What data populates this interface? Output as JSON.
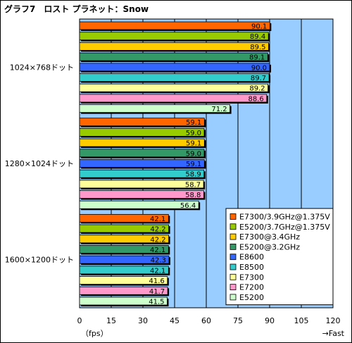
{
  "title": "グラフ7　ロスト プラネット：Snow",
  "chart_data": {
    "type": "bar",
    "orientation": "horizontal",
    "title": "グラフ7　ロスト プラネット：Snow",
    "xlabel_left": "（fps）",
    "xlabel_right": "→Fast",
    "xlim": [
      0,
      120
    ],
    "xticks": [
      0,
      15,
      30,
      45,
      60,
      75,
      90,
      105,
      120
    ],
    "grid": true,
    "background": "#99CCFF",
    "legend_position": "bottom-right",
    "categories": [
      "1024×768ドット",
      "1280×1024ドット",
      "1600×1200ドット"
    ],
    "series": [
      {
        "name": "E7300/3.9GHz@1.375V",
        "color": "#FF6600",
        "values": [
          90.1,
          59.1,
          42.1
        ]
      },
      {
        "name": "E5200/3.7GHz@1.375V",
        "color": "#99CC00",
        "values": [
          89.4,
          59.0,
          42.2
        ]
      },
      {
        "name": "E7300@3.4GHz",
        "color": "#FFCC00",
        "values": [
          89.5,
          59.1,
          42.2
        ]
      },
      {
        "name": "E5200@3.2GHz",
        "color": "#339966",
        "values": [
          89.1,
          59.0,
          42.1
        ]
      },
      {
        "name": "E8600",
        "color": "#3366FF",
        "values": [
          90.0,
          59.1,
          42.3
        ]
      },
      {
        "name": "E8500",
        "color": "#33CCCC",
        "values": [
          89.7,
          58.9,
          42.1
        ]
      },
      {
        "name": "E7300",
        "color": "#FFFF99",
        "values": [
          89.2,
          58.7,
          41.6
        ]
      },
      {
        "name": "E7200",
        "color": "#FF99CC",
        "values": [
          88.6,
          58.8,
          41.7
        ]
      },
      {
        "name": "E5200",
        "color": "#CCFFCC",
        "values": [
          71.2,
          56.4,
          41.5
        ]
      }
    ]
  }
}
